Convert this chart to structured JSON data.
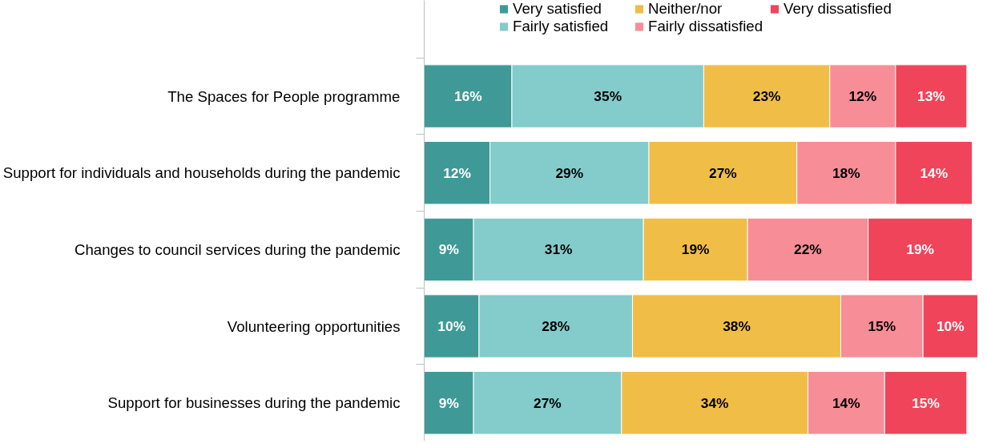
{
  "chart_data": {
    "type": "bar",
    "orientation": "horizontal",
    "stacked": true,
    "legend": "top",
    "categories": [
      "The Spaces for People programme",
      "Support for individuals and households during the pandemic",
      "Changes to council services during the pandemic",
      "Volunteering opportunities",
      "Support for businesses during the pandemic"
    ],
    "series": [
      {
        "name": "Very satisfied",
        "color": "#3f9a97",
        "values": [
          16,
          12,
          9,
          10,
          9
        ],
        "value_labels": [
          "16%",
          "12%",
          "9%",
          "10%",
          "9%"
        ]
      },
      {
        "name": "Fairly satisfied",
        "color": "#84cbcb",
        "values": [
          35,
          29,
          31,
          28,
          27
        ],
        "value_labels": [
          "35%",
          "29%",
          "31%",
          "28%",
          "27%"
        ]
      },
      {
        "name": "Neither/nor",
        "color": "#f0bd47",
        "values": [
          23,
          27,
          19,
          38,
          34
        ],
        "value_labels": [
          "23%",
          "27%",
          "19%",
          "38%",
          "34%"
        ]
      },
      {
        "name": "Fairly dissatisfied",
        "color": "#f78d96",
        "values": [
          12,
          18,
          22,
          15,
          14
        ],
        "value_labels": [
          "12%",
          "18%",
          "22%",
          "15%",
          "14%"
        ]
      },
      {
        "name": "Very dissatisfied",
        "color": "#f0445a",
        "values": [
          13,
          14,
          19,
          10,
          15
        ],
        "value_labels": [
          "13%",
          "14%",
          "19%",
          "10%",
          "15%"
        ]
      }
    ]
  }
}
